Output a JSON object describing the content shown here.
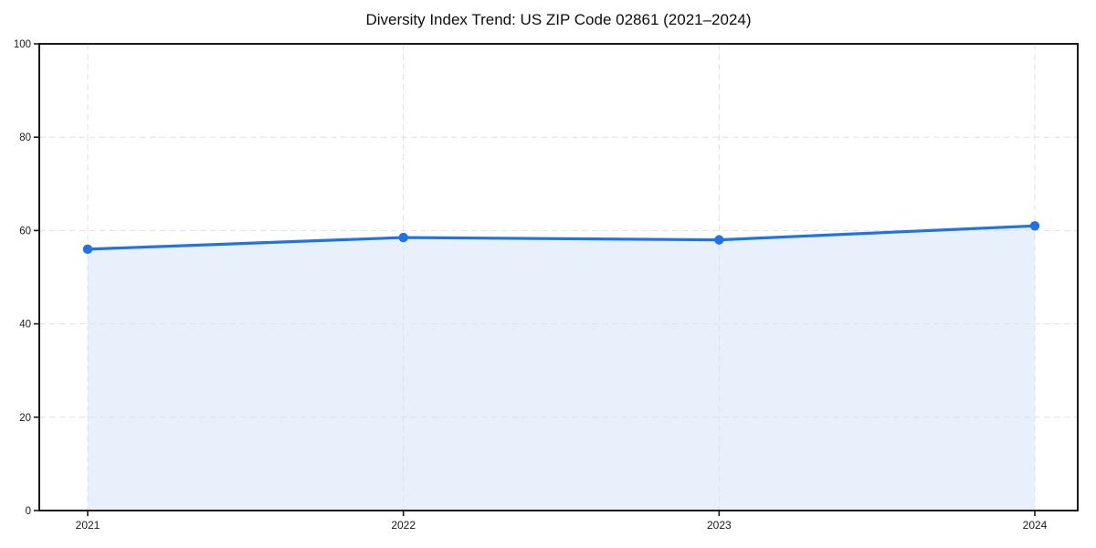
{
  "chart_data": {
    "type": "area",
    "title": "Diversity Index Trend: US ZIP Code 02861 (2021–2024)",
    "series_name": "Diversity Index",
    "categories": [
      "2021",
      "2022",
      "2023",
      "2024"
    ],
    "values": [
      56,
      58.5,
      58,
      61
    ],
    "xlabel": "",
    "ylabel": "",
    "ylim": [
      0,
      100
    ],
    "yticks": [
      0,
      20,
      40,
      60,
      80,
      100
    ],
    "grid": "dashed",
    "legend": "none",
    "marker": "circle",
    "colors": {
      "line": "#2273e2",
      "fill": "#e8f0fc",
      "marker": "#2273e2",
      "grid": "#e0e0e0",
      "axis": "#1a1a1a",
      "title_text": "#0d0d0d",
      "tick_text": "#1a1a1a",
      "background": "#ffffff"
    }
  }
}
